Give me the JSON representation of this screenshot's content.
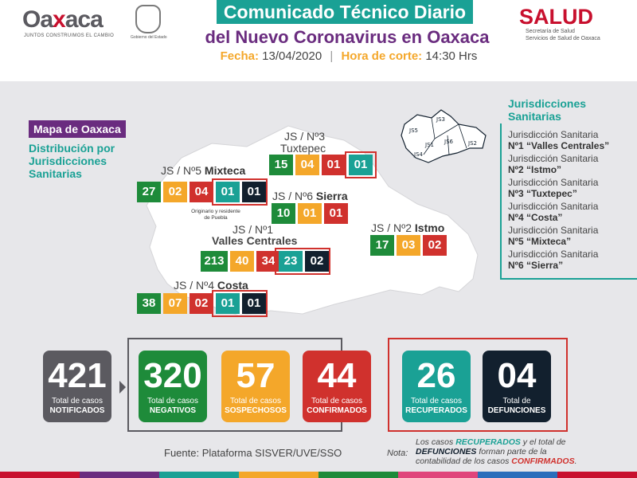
{
  "header": {
    "logo_word_a": "Oa",
    "logo_word_x": "x",
    "logo_word_b": "aca",
    "logo_tagline": "JUNTOS CONSTRUIMOS EL CAMBIO",
    "seal_caption": "Gobierno del Estado",
    "title_line1": "Comunicado Técnico Diario",
    "title_line2": "del Nuevo Coronavirus en Oaxaca",
    "fecha_label": "Fecha:",
    "fecha_value": "13/04/2020",
    "corte_label": "Hora de corte:",
    "corte_value": "14:30 Hrs",
    "salud_logo": "SALUD",
    "salud_sub1": "Secretaría de Salud",
    "salud_sub2": "Servicios de Salud de Oaxaca"
  },
  "map": {
    "tag": "Mapa de Oaxaca",
    "subtitle": "Distribución por Jurisdicciones Sanitarias",
    "origin_note": "Originario y residente de Puebla",
    "jurisdictions": [
      {
        "prefix": "JS / Nº3",
        "name": "Tuxtepec",
        "values": [
          "15",
          "04",
          "01",
          "01"
        ]
      },
      {
        "prefix": "JS / Nº5",
        "name": "Mixteca",
        "values": [
          "27",
          "02",
          "04",
          "01",
          "01"
        ]
      },
      {
        "prefix": "JS / Nº6",
        "name": "Sierra",
        "values": [
          "10",
          "01",
          "01"
        ]
      },
      {
        "prefix": "JS / Nº2",
        "name": "Istmo",
        "values": [
          "17",
          "03",
          "02"
        ]
      },
      {
        "prefix": "JS / Nº1",
        "name": "Valles Centrales",
        "values": [
          "213",
          "40",
          "34",
          "23",
          "02"
        ]
      },
      {
        "prefix": "JS / Nº4",
        "name": "Costa",
        "values": [
          "38",
          "07",
          "02",
          "01",
          "01"
        ]
      }
    ]
  },
  "legend": {
    "title": "Jurisdicciones Sanitarias",
    "mini_labels": [
      "JS5",
      "JS3",
      "JS6",
      "JS2",
      "JS1",
      "JS4"
    ],
    "items": [
      {
        "line1": "Jurisdicción Sanitaria",
        "line2": "Nº1 “Valles Centrales”"
      },
      {
        "line1": "Jurisdicción Sanitaria",
        "line2": "Nº2 “Istmo”"
      },
      {
        "line1": "Jurisdicción Sanitaria",
        "line2": "Nº3 “Tuxtepec”"
      },
      {
        "line1": "Jurisdicción Sanitaria",
        "line2": "Nº4 “Costa”"
      },
      {
        "line1": "Jurisdicción Sanitaria",
        "line2": "Nº5 “Mixteca”"
      },
      {
        "line1": "Jurisdicción Sanitaria",
        "line2": "Nº6 “Sierra”"
      }
    ]
  },
  "stats": [
    {
      "value": "421",
      "label1": "Total de casos",
      "label2": "NOTIFICADOS",
      "color": "#5b5a60"
    },
    {
      "value": "320",
      "label1": "Total de casos",
      "label2": "NEGATIVOS",
      "color": "#1e8b3a"
    },
    {
      "value": "57",
      "label1": "Total de casos",
      "label2": "SOSPECHOSOS",
      "color": "#f4a72a"
    },
    {
      "value": "44",
      "label1": "Total de casos",
      "label2": "CONFIRMADOS",
      "color": "#d0312d"
    },
    {
      "value": "26",
      "label1": "Total de casos",
      "label2": "RECUPERADOS",
      "color": "#1aa195"
    },
    {
      "value": "04",
      "label1": "Total de",
      "label2": "DEFUNCIONES",
      "color": "#12202e"
    }
  ],
  "footer": {
    "fuente": "Fuente: Plataforma SISVER/UVE/SSO",
    "nota_label": "Nota:",
    "nota_p1": "Los casos ",
    "nota_recuperados": "RECUPERADOS",
    "nota_p2": " y el total de ",
    "nota_defunciones": "DEFUNCIONES",
    "nota_p3": " forman parte de la contabilidad de los casos ",
    "nota_confirmados": "CONFIRMADOS",
    "nota_p4": "."
  },
  "colors": {
    "negativos": "#1e8b3a",
    "sospechosos": "#f4a72a",
    "confirmados": "#d0312d",
    "recuperados": "#1aa195",
    "defunciones": "#12202e",
    "notificados": "#5b5a60",
    "purple": "#6a2c7f"
  }
}
